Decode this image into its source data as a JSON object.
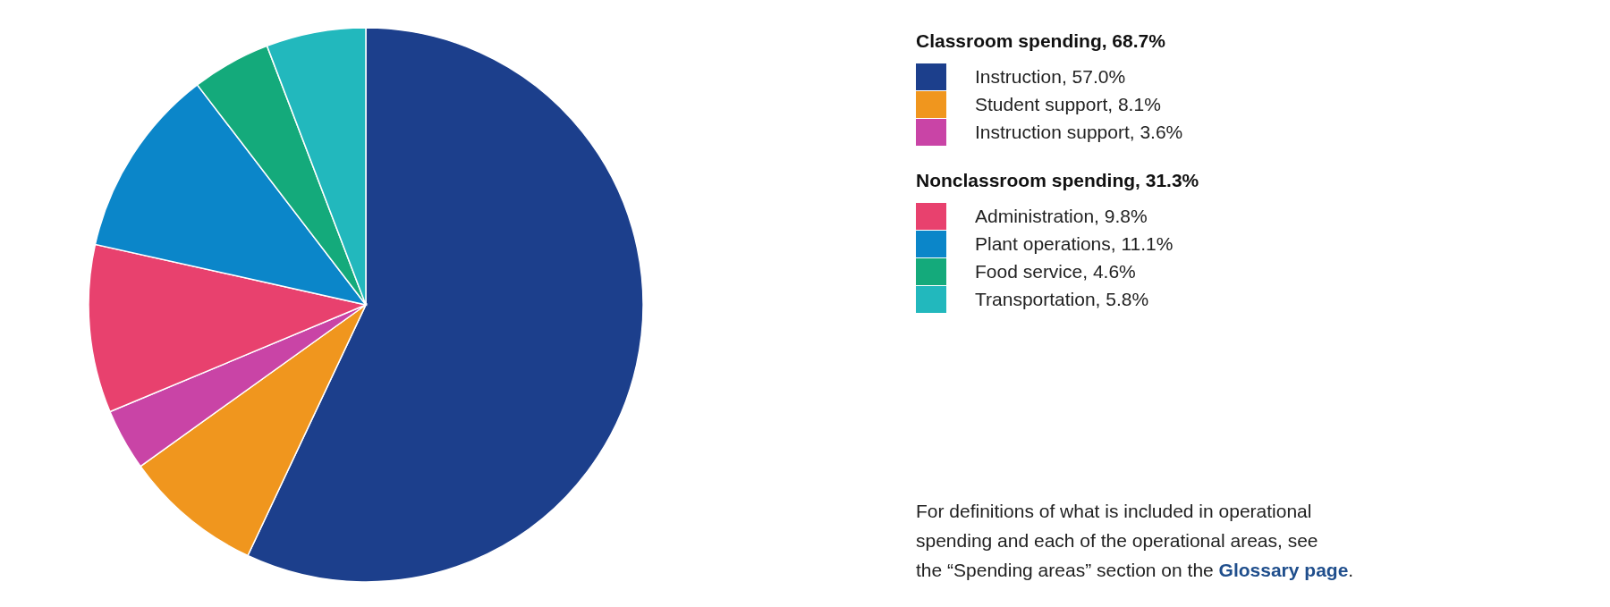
{
  "chart_data": {
    "type": "pie",
    "categories": [
      "Instruction, 57.0%",
      "Student support, 8.1%",
      "Instruction support, 3.6%",
      "Administration, 9.8%",
      "Plant operations, 11.1%",
      "Food service, 4.6%",
      "Transportation, 5.8%"
    ],
    "values": [
      57.0,
      8.1,
      3.6,
      9.8,
      11.1,
      4.6,
      5.8
    ],
    "colors": [
      "#1c3f8c",
      "#f0961e",
      "#c944a6",
      "#e8416e",
      "#0b86c9",
      "#14aa7b",
      "#22b8bd"
    ],
    "legend": "right",
    "annotations": [
      "Classroom spending, 68.7%",
      "Nonclassroom spending, 31.3%",
      "For definitions of what is included in operational spending and each of the operational areas, see the “Spending areas” section on the Glossary page."
    ]
  }
}
